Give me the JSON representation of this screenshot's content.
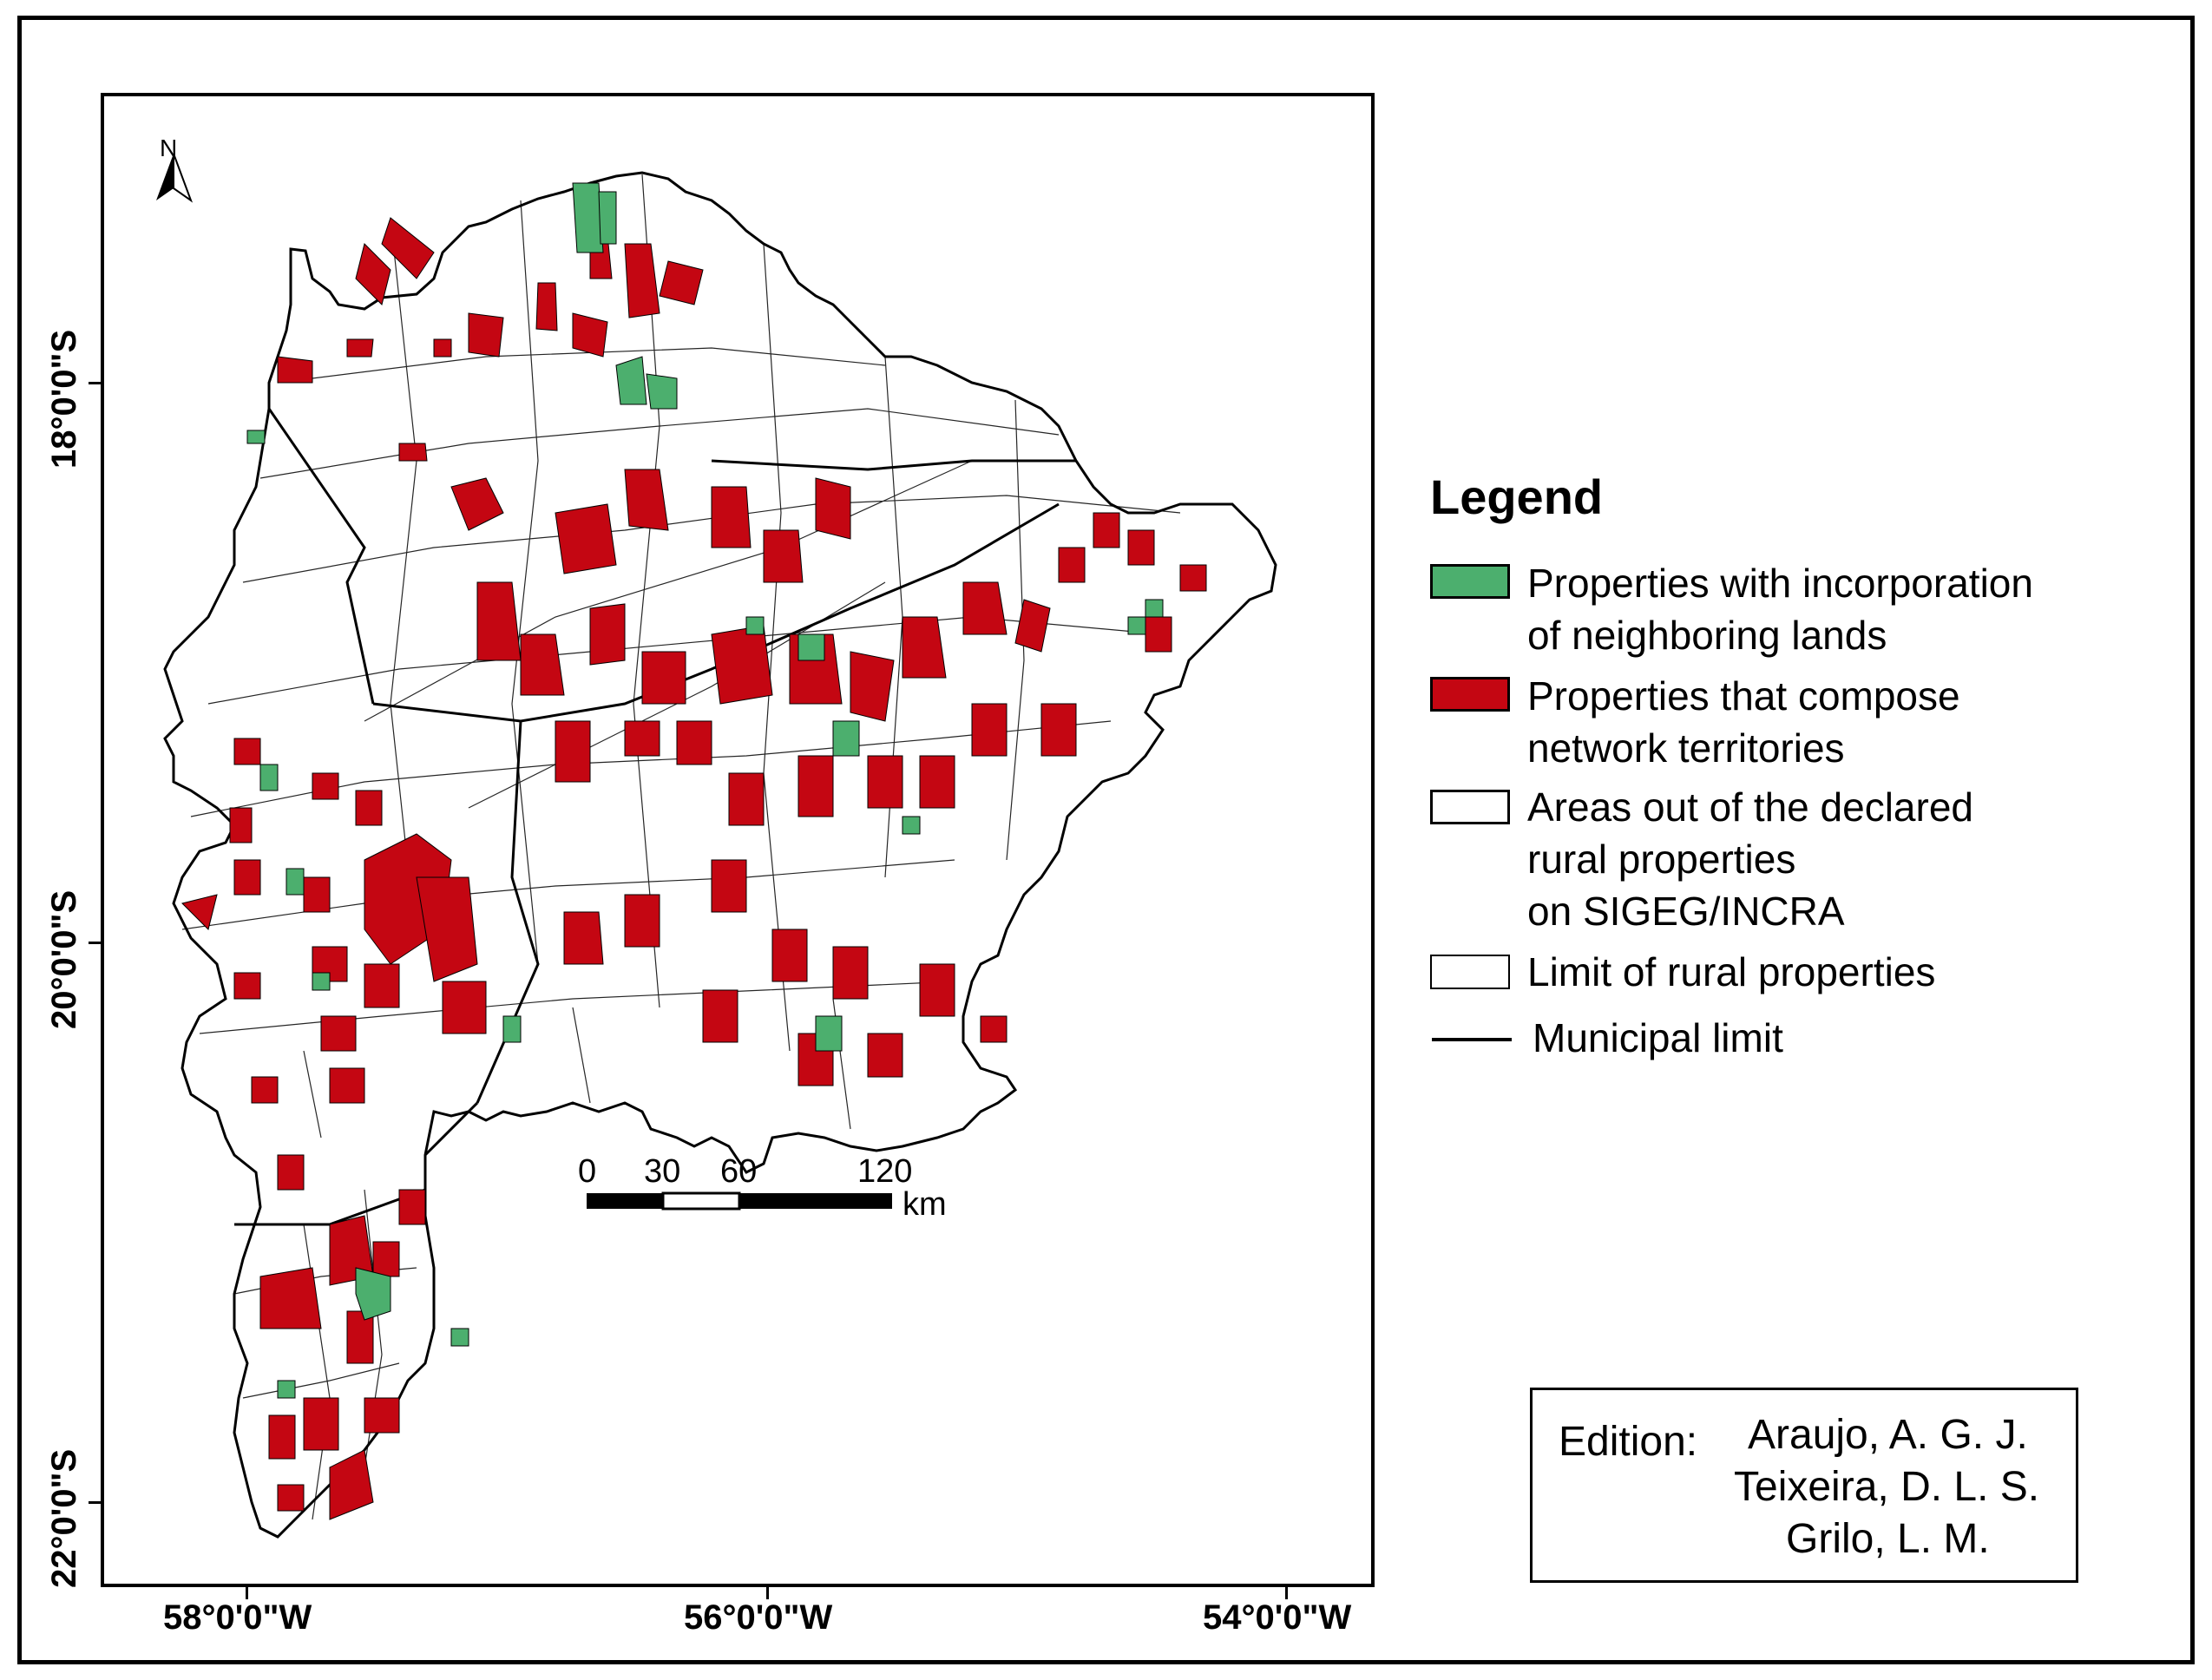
{
  "map": {
    "lat_labels": [
      "18°0'0\"S",
      "20°0'0\"S",
      "22°0'0\"S"
    ],
    "lon_labels": [
      "58°0'0\"W",
      "56°0'0\"W",
      "54°0'0\"W"
    ],
    "north_arrow": "N",
    "scale_bar": {
      "ticks": [
        "0",
        "30",
        "60",
        "120"
      ],
      "unit": "km"
    }
  },
  "legend": {
    "title": "Legend",
    "items": [
      {
        "label": "Properties with incorporation\nof neighboring lands",
        "color": "#4caf6e"
      },
      {
        "label": "Properties that compose\nnetwork territories",
        "color": "#c40612"
      },
      {
        "label": "Areas out of the declared\nrural properties\non SIGEG/INCRA",
        "color": "#ffffff"
      },
      {
        "label": "Limit of rural properties",
        "color": "#ffffff"
      },
      {
        "label": "Municipal limit",
        "color": "#000000"
      }
    ]
  },
  "edition": {
    "label": "Edition:",
    "names": [
      "Araujo, A. G. J.",
      "Teixeira, D. L. S.",
      "Grilo, L. M."
    ]
  }
}
